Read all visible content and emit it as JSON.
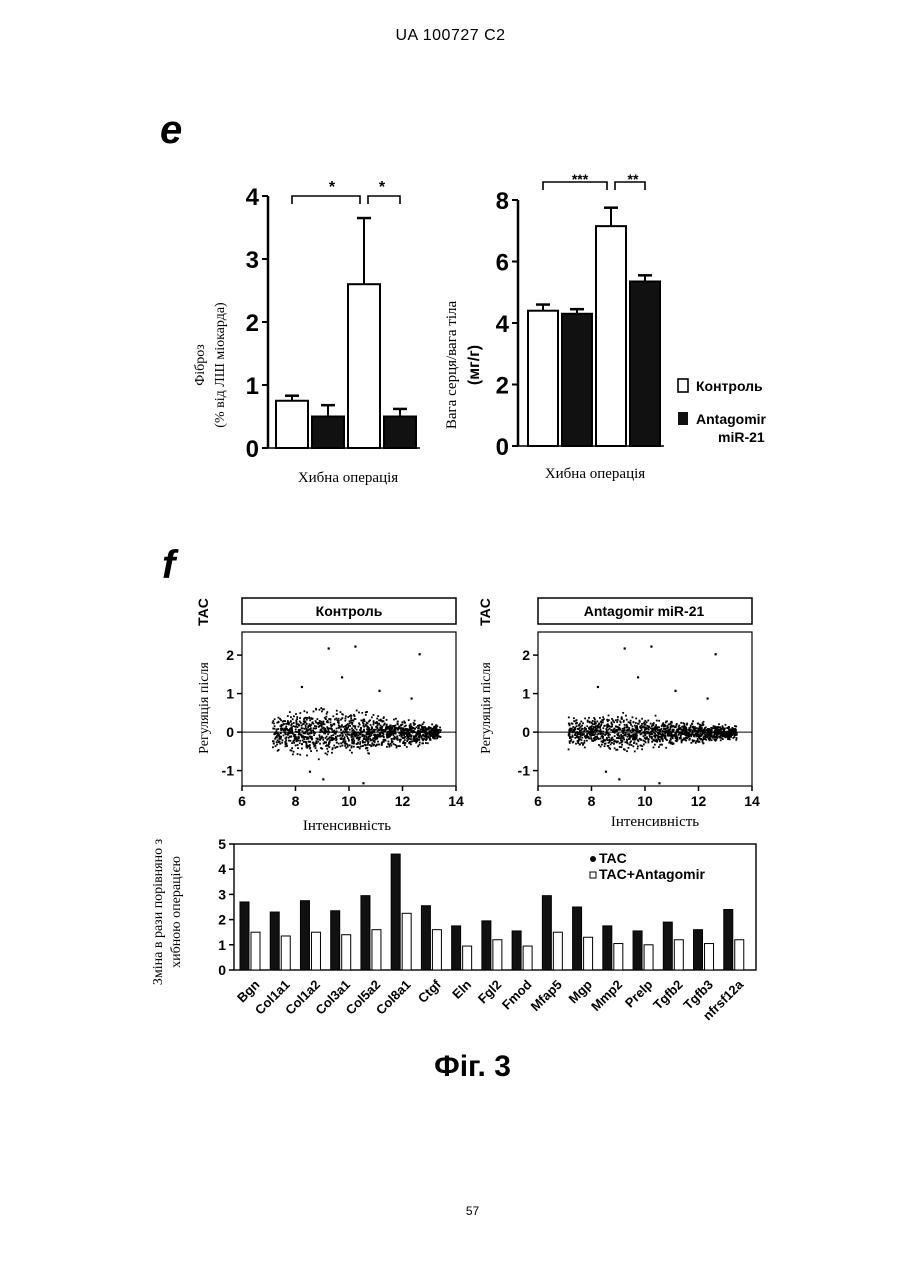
{
  "header": {
    "doc_id": "UA   100727   C2"
  },
  "panel_e": {
    "letter": "e",
    "chart_left": {
      "ylabel_line1": "Фіброз",
      "ylabel_line2": "(% від ЛШ міокарда)",
      "xlabel": "Хибна операція",
      "sig1": "*",
      "sig2": "*"
    },
    "chart_right": {
      "ylabel_line1": "Вага серця/вага тіла",
      "ylabel_line2": "(мг/г)",
      "xlabel": "Хибна операція",
      "sig1": "***",
      "sig2": "**"
    },
    "legend": {
      "control": "Контроль",
      "antagomir_line1": "Antagomir",
      "antagomir_line2": "miR-21"
    }
  },
  "panel_f": {
    "letter": "f",
    "scatter_left_title": "Контроль",
    "scatter_right_title": "Antagomir miR-21",
    "scatter_ylabel": "Регуляція після",
    "scatter_ylabel_tac": "TAC",
    "scatter_xlabel": "Інтенсивність",
    "bar_ylabel_line1": "Зміна в рази порівняно з",
    "bar_ylabel_line2": "хибною операцією",
    "bar_legend_tac": "TAC",
    "bar_legend_tac_ant": "TAC+Antagomir"
  },
  "caption": "Фіг. 3",
  "page_number": "57",
  "colors": {
    "bar_fill_dark": "#111111",
    "bar_fill_open": "#ffffff",
    "ink": "#000000"
  },
  "chart_data": [
    {
      "type": "bar",
      "categories": [
        "Хибна операція (Контроль)",
        "Хибна операція (Antagomir miR-21)",
        "TAC (Контроль)",
        "TAC (Antagomir miR-21)"
      ],
      "values": [
        0.75,
        0.5,
        2.6,
        0.5
      ],
      "errors": [
        0.08,
        0.18,
        1.05,
        0.12
      ],
      "colors": [
        "open",
        "dark",
        "open",
        "dark"
      ],
      "ylim": [
        0,
        4
      ],
      "yticks": [
        "0",
        "1",
        "2",
        "3",
        "4"
      ],
      "ylabel": "Фіброз (% від ЛШ міокарда)",
      "xlabel": "Хибна операція"
    },
    {
      "type": "bar",
      "categories": [
        "Хибна операція (Контроль)",
        "Хибна операція (Antagomir miR-21)",
        "TAC (Контроль)",
        "TAC (Antagomir miR-21)"
      ],
      "values": [
        4.4,
        4.3,
        7.15,
        5.35
      ],
      "errors": [
        0.2,
        0.15,
        0.6,
        0.2
      ],
      "colors": [
        "open",
        "dark",
        "open",
        "dark"
      ],
      "ylim": [
        0,
        8
      ],
      "yticks": [
        "0",
        "2",
        "4",
        "6",
        "8"
      ],
      "ylabel": "Вага серця/вага тіла (мг/г)",
      "xlabel": "Хибна операція"
    },
    {
      "type": "scatter",
      "title": "Контроль",
      "xlim": [
        6,
        14
      ],
      "ylim": [
        -1.4,
        2.6
      ],
      "xticks": [
        "6",
        "8",
        "10",
        "12",
        "14"
      ],
      "yticks": [
        "-1",
        "0",
        "1",
        "2"
      ],
      "xlabel": "Інтенсивність",
      "ylabel": "Регуляція після TAC"
    },
    {
      "type": "scatter",
      "title": "Antagomir miR-21",
      "xlim": [
        6,
        14
      ],
      "ylim": [
        -1.4,
        2.6
      ],
      "xticks": [
        "6",
        "8",
        "10",
        "12",
        "14"
      ],
      "yticks": [
        "-1",
        "0",
        "1",
        "2"
      ],
      "xlabel": "Інтенсивність",
      "ylabel": "Регуляція після TAC"
    },
    {
      "type": "bar",
      "categories": [
        "Bgn",
        "Col1a1",
        "Col1a2",
        "Col3a1",
        "Col5a2",
        "Col8a1",
        "Ctgf",
        "Eln",
        "Fgl2",
        "Fmod",
        "Mfap5",
        "Mgp",
        "Mmp2",
        "Prelp",
        "Tgfb2",
        "Tgfb3",
        "nfrsf12a"
      ],
      "series": [
        {
          "name": "TAC",
          "values": [
            2.7,
            2.3,
            2.75,
            2.35,
            2.95,
            4.6,
            2.55,
            1.75,
            1.95,
            1.55,
            2.95,
            2.5,
            1.75,
            1.55,
            1.9,
            1.6,
            2.4
          ]
        },
        {
          "name": "TAC+Antagomir",
          "values": [
            1.5,
            1.35,
            1.5,
            1.4,
            1.6,
            2.25,
            1.6,
            0.95,
            1.2,
            0.95,
            1.5,
            1.3,
            1.05,
            1.0,
            1.2,
            1.05,
            1.2
          ]
        }
      ],
      "ylim": [
        0,
        5
      ],
      "yticks": [
        "0",
        "1",
        "2",
        "3",
        "4",
        "5"
      ],
      "ylabel": "Зміна в рази порівняно з хибною операцією"
    }
  ]
}
